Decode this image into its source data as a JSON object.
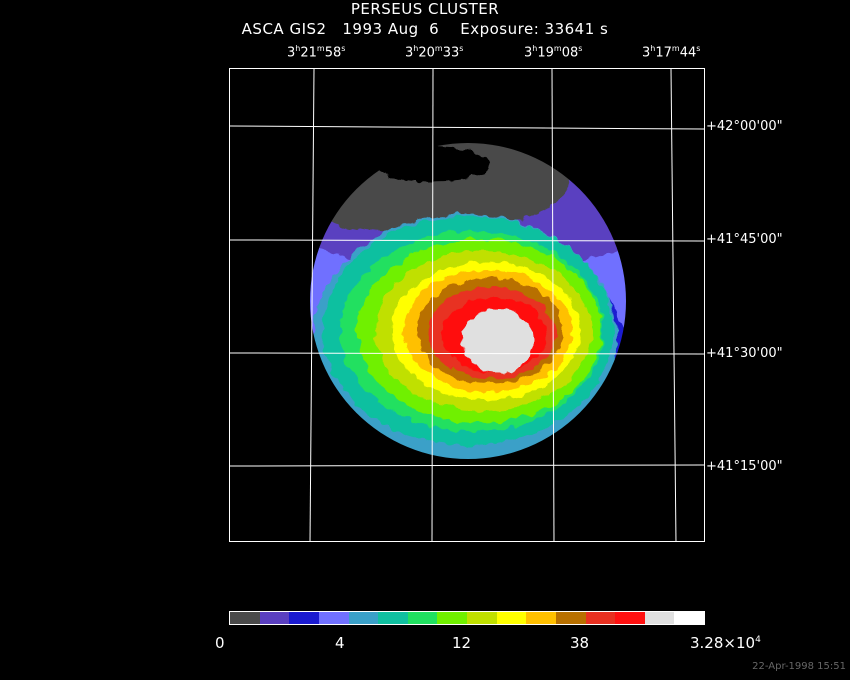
{
  "header": {
    "title": "PERSEUS CLUSTER",
    "subtitle": "ASCA GIS2   1993 Aug  6    Exposure: 33641 s"
  },
  "ra_ticks": [
    {
      "h": "3",
      "m": "21",
      "s": "58"
    },
    {
      "h": "3",
      "m": "20",
      "s": "33"
    },
    {
      "h": "3",
      "m": "19",
      "s": "08"
    },
    {
      "h": "3",
      "m": "17",
      "s": "44"
    }
  ],
  "dec_ticks": [
    {
      "d": "+42",
      "m": "00",
      "s": "00"
    },
    {
      "d": "+41",
      "m": "45",
      "s": "00"
    },
    {
      "d": "+41",
      "m": "30",
      "s": "00"
    },
    {
      "d": "+41",
      "m": "15",
      "s": "00"
    }
  ],
  "colorbar": {
    "colors": [
      "#4a4a4a",
      "#5a3fc0",
      "#1a1ad0",
      "#7070ff",
      "#3aa0c8",
      "#10c0a0",
      "#20e060",
      "#70f000",
      "#c0e000",
      "#ffff00",
      "#ffc000",
      "#b87000",
      "#e83020",
      "#ff1010",
      "#e0e0e0",
      "#ffffff"
    ],
    "labels": {
      "zero": "0",
      "four": "4",
      "twelve": "12",
      "thirtyeight": "38",
      "max_base": "3.28×10",
      "max_exp": "4"
    }
  },
  "footer": {
    "timestamp": "22-Apr-1998 15:51"
  }
}
